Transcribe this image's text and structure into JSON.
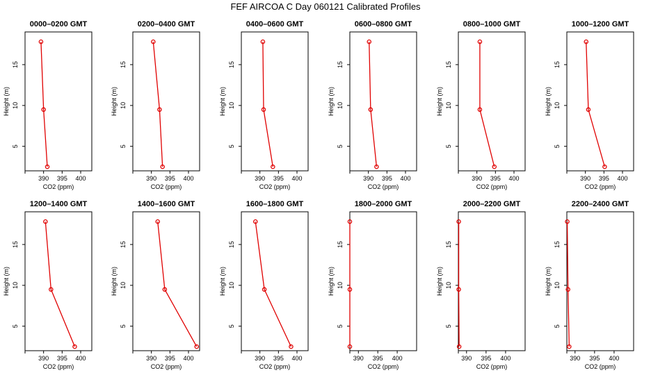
{
  "title": "FEF AIRCOA C  Day 060121  Calibrated Profiles",
  "chart_data": [
    {
      "type": "line",
      "title": "0000–0200 GMT",
      "xlabel": "CO2 (ppm)",
      "ylabel": "Height (m)",
      "xlim": [
        385,
        403
      ],
      "ylim": [
        2,
        19
      ],
      "xticks": [
        390,
        395,
        400
      ],
      "yticks": [
        5,
        10,
        15
      ],
      "heights": [
        17.8,
        9.5,
        2.5
      ],
      "values": [
        389.3,
        390.0,
        391.0
      ]
    },
    {
      "type": "line",
      "title": "0200–0400 GMT",
      "xlabel": "CO2 (ppm)",
      "ylabel": "Height (m)",
      "xlim": [
        385,
        403
      ],
      "ylim": [
        2,
        19
      ],
      "xticks": [
        390,
        395,
        400
      ],
      "yticks": [
        5,
        10,
        15
      ],
      "heights": [
        17.8,
        9.5,
        2.5
      ],
      "values": [
        390.5,
        392.2,
        393.0
      ]
    },
    {
      "type": "line",
      "title": "0400–0600 GMT",
      "xlabel": "CO2 (ppm)",
      "ylabel": "Height (m)",
      "xlim": [
        385,
        403
      ],
      "ylim": [
        2,
        19
      ],
      "xticks": [
        390,
        395,
        400
      ],
      "yticks": [
        5,
        10,
        15
      ],
      "heights": [
        17.8,
        9.5,
        2.5
      ],
      "values": [
        390.8,
        391.0,
        393.5
      ]
    },
    {
      "type": "line",
      "title": "0600–0800 GMT",
      "xlabel": "CO2 (ppm)",
      "ylabel": "Height (m)",
      "xlim": [
        385,
        403
      ],
      "ylim": [
        2,
        19
      ],
      "xticks": [
        390,
        395,
        400
      ],
      "yticks": [
        5,
        10,
        15
      ],
      "heights": [
        17.8,
        9.5,
        2.5
      ],
      "values": [
        390.2,
        390.6,
        392.2
      ]
    },
    {
      "type": "line",
      "title": "0800–1000 GMT",
      "xlabel": "CO2 (ppm)",
      "ylabel": "Height (m)",
      "xlim": [
        385,
        403
      ],
      "ylim": [
        2,
        19
      ],
      "xticks": [
        390,
        395,
        400
      ],
      "yticks": [
        5,
        10,
        15
      ],
      "heights": [
        17.8,
        9.5,
        2.5
      ],
      "values": [
        390.8,
        390.8,
        394.7
      ]
    },
    {
      "type": "line",
      "title": "1000–1200 GMT",
      "xlabel": "CO2 (ppm)",
      "ylabel": "Height (m)",
      "xlim": [
        385,
        403
      ],
      "ylim": [
        2,
        19
      ],
      "xticks": [
        390,
        395,
        400
      ],
      "yticks": [
        5,
        10,
        15
      ],
      "heights": [
        17.8,
        9.5,
        2.5
      ],
      "values": [
        390.2,
        390.8,
        395.2
      ]
    },
    {
      "type": "line",
      "title": "1200–1400 GMT",
      "xlabel": "CO2 (ppm)",
      "ylabel": "Height (m)",
      "xlim": [
        385,
        403
      ],
      "ylim": [
        2,
        19
      ],
      "xticks": [
        390,
        395,
        400
      ],
      "yticks": [
        5,
        10,
        15
      ],
      "heights": [
        17.8,
        9.5,
        2.5
      ],
      "values": [
        390.5,
        392.0,
        398.4
      ]
    },
    {
      "type": "line",
      "title": "1400–1600 GMT",
      "xlabel": "CO2 (ppm)",
      "ylabel": "Height (m)",
      "xlim": [
        385,
        403
      ],
      "ylim": [
        2,
        19
      ],
      "xticks": [
        390,
        395,
        400
      ],
      "yticks": [
        5,
        10,
        15
      ],
      "heights": [
        17.8,
        9.5,
        2.5
      ],
      "values": [
        391.7,
        393.6,
        402.2
      ]
    },
    {
      "type": "line",
      "title": "1600–1800 GMT",
      "xlabel": "CO2 (ppm)",
      "ylabel": "Height (m)",
      "xlim": [
        385,
        403
      ],
      "ylim": [
        2,
        19
      ],
      "xticks": [
        390,
        395,
        400
      ],
      "yticks": [
        5,
        10,
        15
      ],
      "heights": [
        17.8,
        9.5,
        2.5
      ],
      "values": [
        388.8,
        391.2,
        398.4
      ]
    },
    {
      "type": "line",
      "title": "1800–2000 GMT",
      "xlabel": "CO2 (ppm)",
      "ylabel": "Height (m)",
      "xlim": [
        387.8,
        405
      ],
      "ylim": [
        2,
        19
      ],
      "xticks": [
        390,
        395,
        400
      ],
      "yticks": [
        5,
        10,
        15
      ],
      "heights": [
        17.8,
        9.5,
        2.5
      ],
      "values": [
        387.8,
        387.8,
        387.8
      ]
    },
    {
      "type": "line",
      "title": "2000–2200 GMT",
      "xlabel": "CO2 (ppm)",
      "ylabel": "Height (m)",
      "xlim": [
        387.9,
        405
      ],
      "ylim": [
        2,
        19
      ],
      "xticks": [
        390,
        395,
        400
      ],
      "yticks": [
        5,
        10,
        15
      ],
      "heights": [
        17.8,
        9.5,
        2.5
      ],
      "values": [
        388.0,
        388.0,
        388.1
      ]
    },
    {
      "type": "line",
      "title": "2200–2400 GMT",
      "xlabel": "CO2 (ppm)",
      "ylabel": "Height (m)",
      "xlim": [
        387.9,
        405
      ],
      "ylim": [
        2,
        19
      ],
      "xticks": [
        390,
        395,
        400
      ],
      "yticks": [
        5,
        10,
        15
      ],
      "heights": [
        17.8,
        9.5,
        2.5
      ],
      "values": [
        388.0,
        388.2,
        388.5
      ]
    }
  ]
}
